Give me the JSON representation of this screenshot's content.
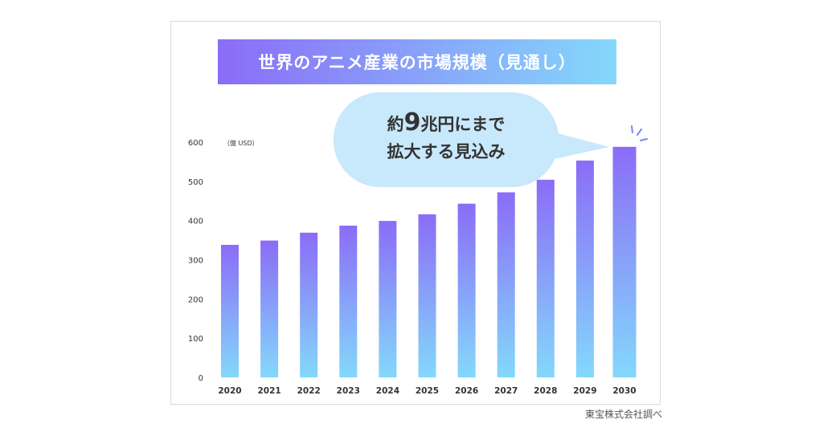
{
  "chart_data": {
    "type": "bar",
    "title": "世界のアニメ産業の市場規模（見通し）",
    "unit_label": "（億 USD）",
    "categories": [
      "2020",
      "2021",
      "2022",
      "2023",
      "2024",
      "2025",
      "2026",
      "2027",
      "2028",
      "2029",
      "2030"
    ],
    "values": [
      338,
      349,
      369,
      387,
      399,
      416,
      443,
      472,
      504,
      553,
      588
    ],
    "ylim": [
      0,
      600
    ],
    "yticks": [
      "0",
      "100",
      "200",
      "300",
      "400",
      "500",
      "600"
    ],
    "grid": false,
    "bar_gradient": [
      "#8b6cf7",
      "#84d8fb"
    ],
    "annotation": {
      "prefix": "約",
      "number": "9",
      "suffix": "兆円にまで",
      "line2": "拡大する見込み",
      "bubble_color": "#c8e8fb"
    },
    "source": "東宝株式会社調べ"
  }
}
